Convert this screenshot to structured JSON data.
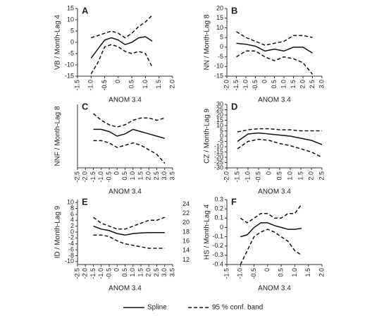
{
  "chart_data": [
    {
      "type": "line",
      "panel": "A",
      "y_label": "VB / Month-Lag 4",
      "x_label": "ANOM 3.4",
      "x": [
        -1,
        -0.75,
        -0.5,
        -0.25,
        0,
        0.25,
        0.5,
        0.75,
        1,
        1.25
      ],
      "series": [
        {
          "style": "solid",
          "values": [
            -7,
            -3,
            1,
            2,
            1,
            -1,
            0,
            2,
            2.5,
            0.5
          ]
        },
        {
          "style": "dashed",
          "values": [
            2,
            3,
            4,
            5,
            4,
            2,
            4,
            7,
            9,
            12
          ]
        },
        {
          "style": "dashed",
          "values": [
            -14,
            -9,
            -2,
            -1,
            -2,
            -4,
            -5,
            -4,
            -5,
            -11
          ]
        }
      ],
      "xlim": [
        -1.5,
        2
      ],
      "xticks": [
        -1.5,
        {
          "value": -1,
          "label": "-1.0"
        },
        -0.5,
        0,
        0.5,
        {
          "value": 1,
          "label": "1.0"
        },
        1.5,
        {
          "value": 2,
          "label": "2.0"
        }
      ],
      "ylim": [
        -15,
        15
      ],
      "yticks": [
        15,
        10,
        5,
        0,
        -5,
        -10,
        -15
      ]
    },
    {
      "type": "line",
      "panel": "B",
      "y_label": "NN / Month-Lag 8",
      "x_label": "ANOM 3.4",
      "x": [
        -1.5,
        -1,
        -0.5,
        0,
        0.5,
        1,
        1.5,
        2,
        2.5
      ],
      "series": [
        {
          "style": "solid",
          "values": [
            2,
            1.5,
            0.5,
            -2,
            -1,
            -2,
            0,
            0,
            -3
          ]
        },
        {
          "style": "dashed",
          "values": [
            8,
            5,
            3,
            1,
            2,
            3,
            6,
            6,
            5
          ]
        },
        {
          "style": "dashed",
          "values": [
            -5,
            -2,
            -2,
            -5,
            -7,
            -5,
            -6,
            -8,
            -14
          ]
        }
      ],
      "xlim": [
        -2,
        3
      ],
      "xticks": [
        {
          "value": -2,
          "label": "-2.0"
        },
        -1.5,
        {
          "value": -1,
          "label": "-1.0"
        },
        -0.5,
        0,
        0.5,
        {
          "value": 1,
          "label": "1.0"
        },
        1.5,
        {
          "value": 2,
          "label": "2.0"
        },
        2.5,
        {
          "value": 3,
          "label": "3.0"
        }
      ],
      "ylim": [
        -15,
        20
      ],
      "yticks": [
        20,
        15,
        10,
        5,
        0,
        -5,
        -10,
        -15
      ]
    },
    {
      "type": "line",
      "panel": "C",
      "y_label": "NNF / Month-Lag 8",
      "x_label": "ANOM 3.4",
      "x": [
        -1.5,
        -1,
        -0.5,
        0,
        0.5,
        1,
        1.5,
        2,
        2.5,
        3
      ],
      "series": [
        {
          "style": "solid",
          "values": [
            0.5,
            0.5,
            0,
            -1,
            -0.5,
            0.5,
            0,
            -0.5,
            -1,
            -1.5
          ]
        },
        {
          "style": "dashed",
          "values": [
            4,
            2.5,
            1.5,
            1,
            1.5,
            2.5,
            3,
            3,
            2.5,
            3
          ]
        },
        {
          "style": "dashed",
          "values": [
            -2,
            -2,
            -2.5,
            -3.5,
            -3,
            -2.5,
            -3,
            -4,
            -5,
            -7
          ]
        }
      ],
      "xlim": [
        -2.5,
        3.5
      ],
      "xticks": [
        -2.5,
        {
          "value": -2,
          "label": "-2.0"
        },
        -1.5,
        {
          "value": -1,
          "label": "-1.0"
        },
        -0.5,
        0,
        0.5,
        {
          "value": 1,
          "label": "1.0"
        },
        1.5,
        {
          "value": 2,
          "label": "2.0"
        },
        2.5,
        {
          "value": 3,
          "label": "3.0"
        },
        3.5
      ],
      "ylim": [
        -8,
        6
      ]
    },
    {
      "type": "line",
      "panel": "D",
      "y_label": "CZ / Month-Lag 9",
      "x_label": "ANOM 3.4",
      "x": [
        -1.5,
        -1,
        -0.5,
        0,
        0.5,
        1,
        1.5,
        2,
        2.5
      ],
      "series": [
        {
          "style": "solid",
          "values": [
            -5,
            2,
            3,
            2,
            1,
            0,
            -2,
            -4,
            -8
          ]
        },
        {
          "style": "dashed",
          "values": [
            4,
            6,
            7,
            7,
            6,
            6,
            5,
            5,
            5
          ]
        },
        {
          "style": "dashed",
          "values": [
            -12,
            -5,
            -3,
            -4,
            -7,
            -9,
            -12,
            -15,
            -20
          ]
        }
      ],
      "xlim": [
        -2,
        2.5
      ],
      "xticks": [
        {
          "value": -2,
          "label": "-2.0"
        },
        -1.5,
        {
          "value": -1,
          "label": "-1.0"
        },
        -0.5,
        0,
        0.5,
        {
          "value": 1,
          "label": "1.0"
        },
        1.5,
        {
          "value": 2,
          "label": "2.0"
        },
        2.5
      ],
      "ylim": [
        -30,
        30
      ],
      "yticks": [
        30,
        25,
        20,
        15,
        10,
        5,
        0,
        -5,
        -10,
        -15,
        -20,
        -25,
        -30
      ]
    },
    {
      "type": "line",
      "panel": "E",
      "y_label": "ID / Month-Lag 9",
      "x_label": "ANOM 3.4",
      "x": [
        -1.5,
        -1,
        -0.5,
        0,
        0.5,
        1,
        1.5,
        2,
        2.5,
        3
      ],
      "series": [
        {
          "style": "solid",
          "values": [
            2,
            1,
            0.5,
            -0.5,
            -1,
            -0.5,
            -0.3,
            -0.2,
            -0.2,
            -0.2
          ]
        },
        {
          "style": "dashed",
          "values": [
            5,
            3,
            2,
            1,
            1,
            2,
            3,
            4,
            4,
            5
          ]
        },
        {
          "style": "dashed",
          "values": [
            -1,
            -1,
            -1.5,
            -3,
            -4,
            -4.5,
            -5,
            -5.5,
            -5.5,
            -5.5
          ]
        }
      ],
      "xlim": [
        -2.5,
        3.5
      ],
      "xticks": [
        -2.5,
        {
          "value": -2,
          "label": "-2.0"
        },
        -1.5,
        {
          "value": -1,
          "label": "-1.0"
        },
        -0.5,
        0,
        0.5,
        {
          "value": 1,
          "label": "1.0"
        },
        1.5,
        {
          "value": 2,
          "label": "2.0"
        },
        2.5,
        {
          "value": 3,
          "label": "3.0"
        },
        3.5
      ],
      "ylim": [
        -11,
        11
      ],
      "yticks": [
        10,
        8,
        6,
        4,
        2,
        0,
        -2,
        -4,
        -6,
        -8,
        -10
      ],
      "y2lim": [
        11,
        25
      ],
      "y2ticks": [
        24,
        22,
        20,
        18,
        16,
        14,
        12
      ]
    },
    {
      "type": "line",
      "panel": "F",
      "y_label": "HS / Month-Lag 4",
      "x_label": "ANOM 3.4",
      "x": [
        -1,
        -0.75,
        -0.5,
        -0.25,
        0,
        0.25,
        0.5,
        0.75,
        1,
        1.25
      ],
      "series": [
        {
          "style": "solid",
          "values": [
            -0.1,
            -0.08,
            0,
            0.05,
            0.05,
            0.02,
            0,
            -0.02,
            -0.02,
            -0.01
          ]
        },
        {
          "style": "dashed",
          "values": [
            0.1,
            0.05,
            0.1,
            0.15,
            0.15,
            0.1,
            0.1,
            0.15,
            0.15,
            0.25
          ]
        },
        {
          "style": "dashed",
          "values": [
            -0.4,
            -0.25,
            -0.1,
            -0.05,
            -0.02,
            -0.05,
            -0.1,
            -0.15,
            -0.25,
            -0.3
          ]
        }
      ],
      "xlim": [
        -1.5,
        2
      ],
      "xticks": [
        -1.5,
        {
          "value": -1,
          "label": "-1.0"
        },
        -0.5,
        0,
        0.5,
        {
          "value": 1,
          "label": "1.0"
        },
        1.5,
        {
          "value": 2,
          "label": "2.0"
        }
      ],
      "ylim": [
        -0.4,
        0.3
      ],
      "yticks": [
        0.3,
        0.2,
        0.1,
        0,
        -0.1,
        -0.2,
        -0.3,
        -0.4
      ]
    }
  ],
  "legend": [
    {
      "name": "Spline",
      "style": "solid"
    },
    {
      "name": "95 % conf. band",
      "style": "dashed"
    }
  ]
}
